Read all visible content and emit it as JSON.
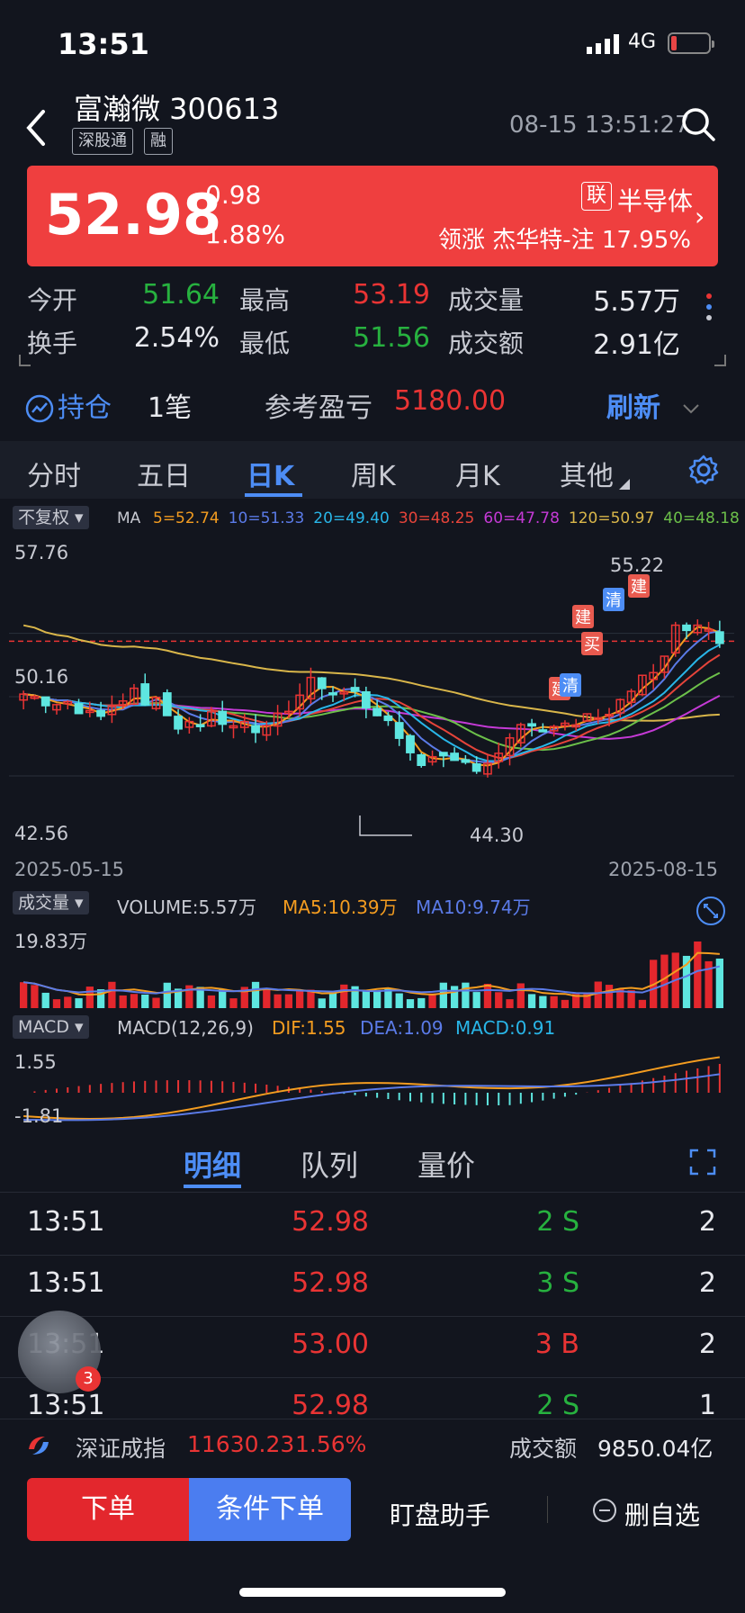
{
  "status": {
    "time": "13:51",
    "network": "4G"
  },
  "header": {
    "name": "富瀚微 300613",
    "tags": [
      "深股通",
      "融"
    ],
    "datetime": "08-15 13:51:27"
  },
  "banner": {
    "price": "52.98",
    "change": "0.98",
    "change_pct": "1.88%",
    "lian": "联",
    "sector": "半导体",
    "lead": "领涨 杰华特-注 17.95%"
  },
  "quote": [
    {
      "label": "今开",
      "value": "51.64",
      "color": "green"
    },
    {
      "label": "最高",
      "value": "53.19",
      "color": "red"
    },
    {
      "label": "成交量",
      "value": "5.57万",
      "color": "white"
    },
    {
      "label": "换手",
      "value": "2.54%",
      "color": "white"
    },
    {
      "label": "最低",
      "value": "51.56",
      "color": "green"
    },
    {
      "label": "成交额",
      "value": "2.91亿",
      "color": "white"
    }
  ],
  "position": {
    "label": "持仓",
    "count": "1笔",
    "pnl_label": "参考盈亏",
    "pnl": "5180.00",
    "refresh": "刷新"
  },
  "ktabs": [
    "分时",
    "五日",
    "日K",
    "周K",
    "月K",
    "其他"
  ],
  "ma": {
    "adjust": "不复权",
    "name": "MA",
    "items": [
      {
        "text": "5=52.74",
        "color": "#f39c20"
      },
      {
        "text": "10=51.33",
        "color": "#5b7be8"
      },
      {
        "text": "20=49.40",
        "color": "#29b6e8"
      },
      {
        "text": "30=48.25",
        "color": "#e6443a"
      },
      {
        "text": "60=47.78",
        "color": "#c53ad6"
      },
      {
        "text": "120=50.97",
        "color": "#d9b64a"
      },
      {
        "text": "40=48.18",
        "color": "#6cc04a"
      }
    ]
  },
  "kchart": {
    "y_high": "57.76",
    "y_mid": "50.16",
    "y_low": "42.56",
    "high_mark": "55.22",
    "low_mark": "44.30",
    "date_start": "2025-05-15",
    "date_end": "2025-08-15",
    "signals": [
      "建",
      "清",
      "建",
      "买",
      "建",
      "清"
    ]
  },
  "volume": {
    "label": "成交量",
    "value": "VOLUME:5.57万",
    "ma5": "MA5:10.39万",
    "ma10": "MA10:9.74万",
    "max": "19.83万"
  },
  "macd": {
    "label": "MACD",
    "params": "MACD(12,26,9)",
    "dif": "DIF:1.55",
    "dea": "DEA:1.09",
    "macd": "MACD:0.91",
    "top": "1.55",
    "bottom": "-1.81"
  },
  "detail_tabs": [
    "明细",
    "队列",
    "量价"
  ],
  "trades": [
    {
      "time": "13:51",
      "price": "52.98",
      "vol": "2 S",
      "num": "2",
      "vcolor": "green"
    },
    {
      "time": "13:51",
      "price": "52.98",
      "vol": "3 S",
      "num": "2",
      "vcolor": "green"
    },
    {
      "time": "13:51",
      "price": "53.00",
      "vol": "3 B",
      "num": "2",
      "vcolor": "red"
    },
    {
      "time": "13:51",
      "price": "52.98",
      "vol": "2 S",
      "num": "1",
      "vcolor": "green"
    }
  ],
  "float_badge": "3",
  "index": {
    "name": "深证成指",
    "value": "11630.23",
    "pct": "1.56%",
    "amount_label": "成交额",
    "amount": "9850.04亿"
  },
  "actions": {
    "order": "下单",
    "cond_order": "条件下单",
    "helper": "盯盘助手",
    "remove": "删自选"
  }
}
